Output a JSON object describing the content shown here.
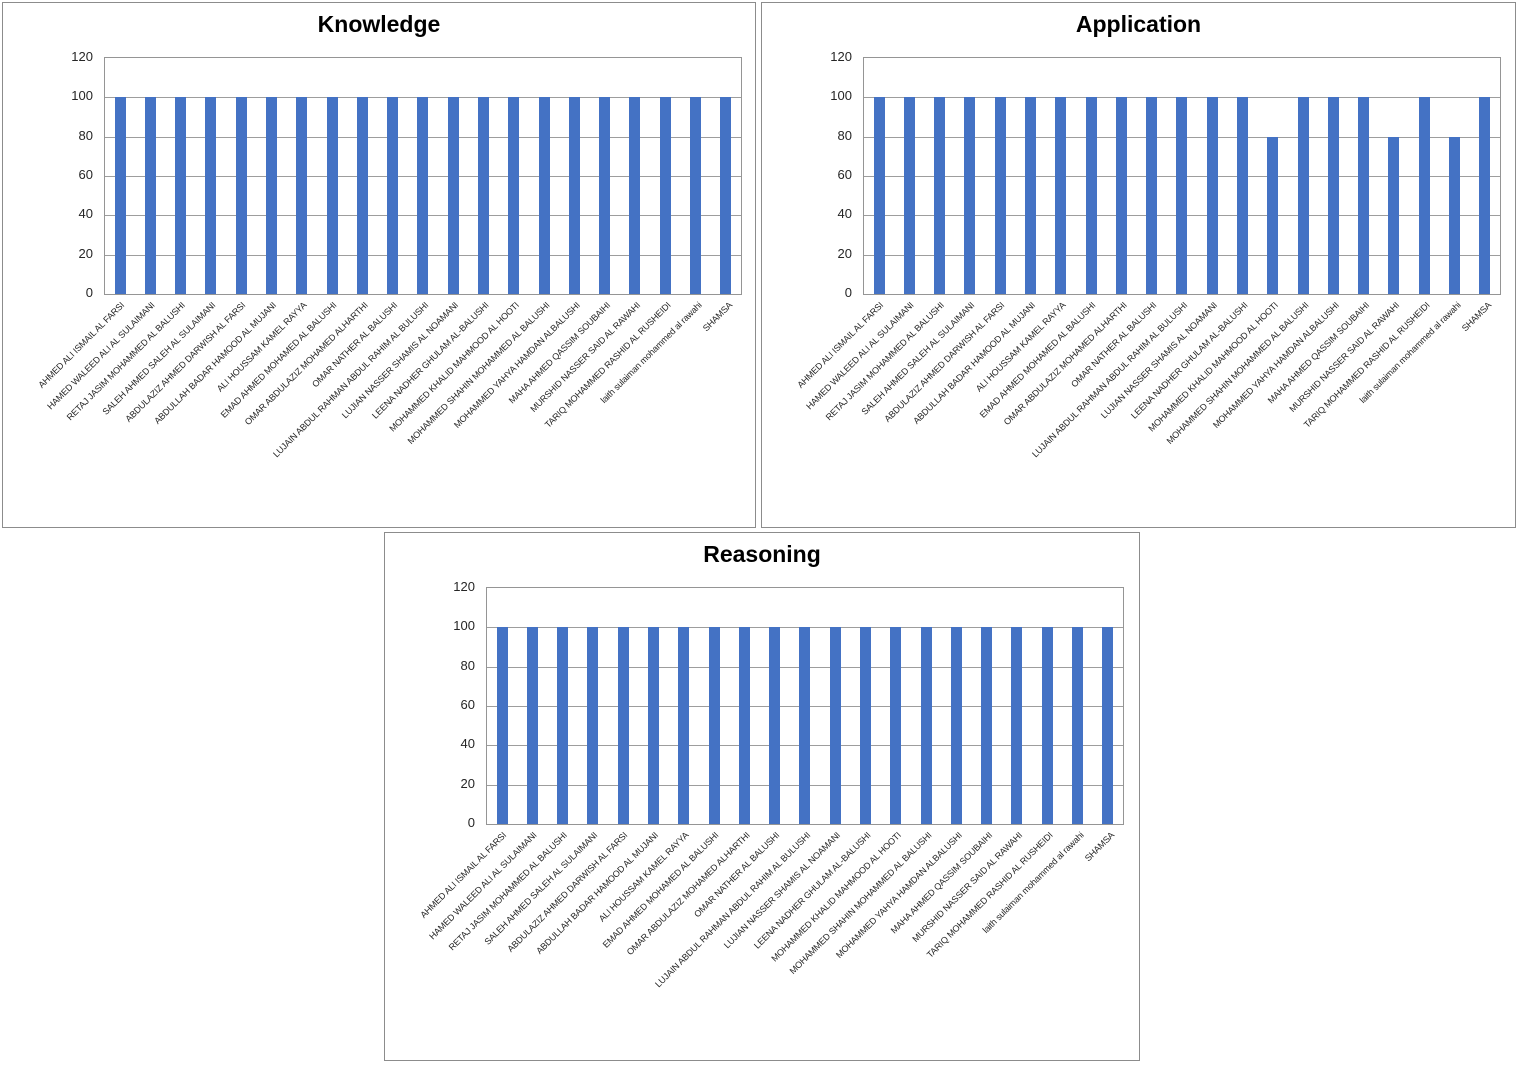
{
  "page": {
    "background": "#ffffff"
  },
  "colors": {
    "bar": "#4472C4",
    "gridline": "#9d9d9d",
    "plot_border": "#959595",
    "panel_border": "#8c8c8c",
    "text": "#262626"
  },
  "chart_data": [
    {
      "type": "bar",
      "title": "Knowledge",
      "categories": [
        "AHMED ALI ISMAIL AL FARSI",
        "HAMED WALEED ALI AL SULAIMANI",
        "RETAJ JASIM MOHAMMED AL BALUSHI",
        "SALEH AHMED SALEH AL SULAIMANI",
        "ABDULAZIZ AHMED DARWISH AL FARSI",
        "ABDULLAH BADAR HAMOOD AL MUJANI",
        "ALI HOUSSAM KAMEL RAYYA",
        "EMAD AHMED MOHAMED AL BALUSHI",
        "OMAR ABDULAZIZ MOHAMED ALHARTHI",
        "OMAR NATHER AL BALUSHI",
        "LUJAIN ABDUL RAHMAN ABDUL RAHIM AL BULUSHI",
        "LUJIAN NASSER SHAMIS AL NOAMANI",
        "LEENA NADHER GHULAM AL-BALUSHI",
        "MOHAMMED KHALID MAHMOOD AL HOOTI",
        "MOHAMMED SHAHIN MOHAMMED AL BALUSHI",
        "MOHAMMED YAHYA HAMDAN ALBALUSHI",
        "MAHA AHMED QASSIM SOUBAIHI",
        "MURSHID NASSER SAID AL RAWAHI",
        "TARIQ MOHAMMED RASHID AL RUSHEIDI",
        "laith sulaiman mohammed al rawahi",
        "SHAMSA"
      ],
      "values": [
        100,
        100,
        100,
        100,
        100,
        100,
        100,
        100,
        100,
        100,
        100,
        100,
        100,
        100,
        100,
        100,
        100,
        100,
        100,
        100,
        100
      ],
      "xlabel": "",
      "ylabel": "",
      "ylim": [
        0,
        120
      ],
      "yticks": [
        0,
        20,
        40,
        60,
        80,
        100,
        120
      ],
      "grid": true,
      "legend": "none",
      "bar_color": "#4472C4"
    },
    {
      "type": "bar",
      "title": "Application",
      "categories": [
        "AHMED ALI ISMAIL AL FARSI",
        "HAMED WALEED ALI AL SULAIMANI",
        "RETAJ JASIM MOHAMMED AL BALUSHI",
        "SALEH AHMED SALEH AL SULAIMANI",
        "ABDULAZIZ AHMED DARWISH AL FARSI",
        "ABDULLAH BADAR HAMOOD AL MUJANI",
        "ALI HOUSSAM KAMEL RAYYA",
        "EMAD AHMED MOHAMED AL BALUSHI",
        "OMAR ABDULAZIZ MOHAMED ALHARTHI",
        "OMAR NATHER AL BALUSHI",
        "LUJAIN ABDUL RAHMAN ABDUL RAHIM AL BULUSHI",
        "LUJIAN NASSER SHAMIS AL NOAMANI",
        "LEENA NADHER GHULAM AL-BALUSHI",
        "MOHAMMED KHALID MAHMOOD AL HOOTI",
        "MOHAMMED SHAHIN MOHAMMED AL BALUSHI",
        "MOHAMMED YAHYA HAMDAN ALBALUSHI",
        "MAHA AHMED QASSIM SOUBAIHI",
        "MURSHID NASSER SAID AL RAWAHI",
        "TARIQ MOHAMMED RASHID AL RUSHEIDI",
        "laith sulaiman mohammed al rawahi",
        "SHAMSA"
      ],
      "values": [
        100,
        100,
        100,
        100,
        100,
        100,
        100,
        100,
        100,
        100,
        100,
        100,
        100,
        80,
        100,
        100,
        100,
        80,
        100,
        80,
        100
      ],
      "xlabel": "",
      "ylabel": "",
      "ylim": [
        0,
        120
      ],
      "yticks": [
        0,
        20,
        40,
        60,
        80,
        100,
        120
      ],
      "grid": true,
      "legend": "none",
      "bar_color": "#4472C4"
    },
    {
      "type": "bar",
      "title": "Reasoning",
      "categories": [
        "AHMED ALI ISMAIL AL FARSI",
        "HAMED WALEED ALI AL SULAIMANI",
        "RETAJ JASIM MOHAMMED AL BALUSHI",
        "SALEH AHMED SALEH AL SULAIMANI",
        "ABDULAZIZ AHMED DARWISH AL FARSI",
        "ABDULLAH BADAR HAMOOD AL MUJANI",
        "ALI HOUSSAM KAMEL RAYYA",
        "EMAD AHMED MOHAMED AL BALUSHI",
        "OMAR ABDULAZIZ MOHAMED ALHARTHI",
        "OMAR NATHER AL BALUSHI",
        "LUJAIN ABDUL RAHMAN ABDUL RAHIM AL BULUSHI",
        "LUJIAN NASSER SHAMIS AL NOAMANI",
        "LEENA NADHER GHULAM AL-BALUSHI",
        "MOHAMMED KHALID MAHMOOD AL HOOTI",
        "MOHAMMED SHAHIN MOHAMMED AL BALUSHI",
        "MOHAMMED YAHYA HAMDAN ALBALUSHI",
        "MAHA AHMED QASSIM SOUBAIHI",
        "MURSHID NASSER SAID AL RAWAHI",
        "TARIQ MOHAMMED RASHID AL RUSHEIDI",
        "laith sulaiman mohammed al rawahi",
        "SHAMSA"
      ],
      "values": [
        100,
        100,
        100,
        100,
        100,
        100,
        100,
        100,
        100,
        100,
        100,
        100,
        100,
        100,
        100,
        100,
        100,
        100,
        100,
        100,
        100
      ],
      "xlabel": "",
      "ylabel": "",
      "ylim": [
        0,
        120
      ],
      "yticks": [
        0,
        20,
        40,
        60,
        80,
        100,
        120
      ],
      "grid": true,
      "legend": "none",
      "bar_color": "#4472C4"
    }
  ]
}
